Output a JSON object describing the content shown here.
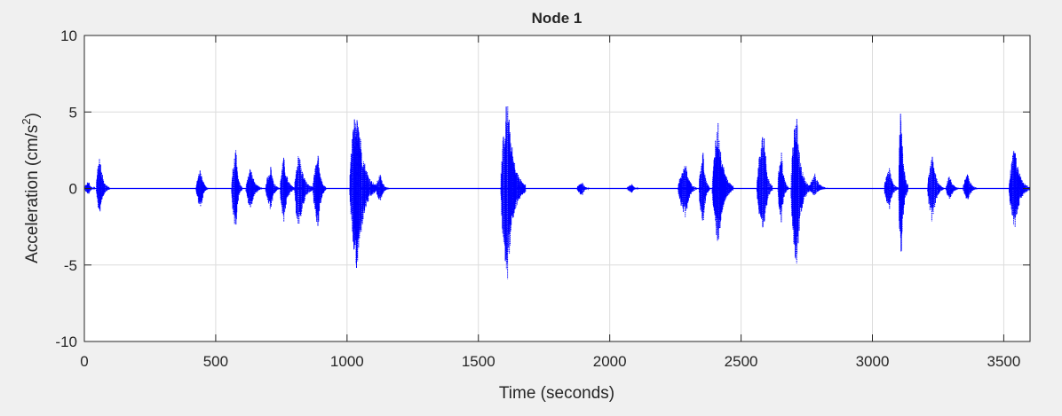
{
  "chart_data": {
    "type": "line",
    "title": "Node 1",
    "xlabel": "Time (seconds)",
    "ylabel_main": "Acceleration (cm/s",
    "ylabel_sup": "2",
    "ylabel_end": ")",
    "xlim": [
      0,
      3600
    ],
    "ylim": [
      -10,
      10
    ],
    "xticks": [
      0,
      500,
      1000,
      1500,
      2000,
      2500,
      3000,
      3500
    ],
    "xtick_labels": [
      "0",
      "500",
      "1000",
      "1500",
      "2000",
      "2500",
      "3000",
      "3500"
    ],
    "yticks": [
      10,
      5,
      0,
      -5,
      -10
    ],
    "ytick_labels": [
      "10",
      "5",
      "0",
      "-5",
      "-10"
    ],
    "grid": true,
    "series": [
      {
        "color": "#0000ff",
        "line_style": "dotted",
        "bursts": [
          {
            "t_start": 0,
            "t_end": 40,
            "peak_max": 0.5,
            "peak_min": -0.4
          },
          {
            "t_start": 45,
            "t_end": 95,
            "peak_max": 2.3,
            "peak_min": -1.8
          },
          {
            "t_start": 425,
            "t_end": 470,
            "peak_max": 1.4,
            "peak_min": -1.5
          },
          {
            "t_start": 560,
            "t_end": 600,
            "peak_max": 2.6,
            "peak_min": -2.9
          },
          {
            "t_start": 615,
            "t_end": 675,
            "peak_max": 1.5,
            "peak_min": -1.5
          },
          {
            "t_start": 690,
            "t_end": 740,
            "peak_max": 1.5,
            "peak_min": -1.6
          },
          {
            "t_start": 745,
            "t_end": 800,
            "peak_max": 2.1,
            "peak_min": -2.3
          },
          {
            "t_start": 800,
            "t_end": 870,
            "peak_max": 2.5,
            "peak_min": -3.0
          },
          {
            "t_start": 870,
            "t_end": 920,
            "peak_max": 2.3,
            "peak_min": -2.7
          },
          {
            "t_start": 1010,
            "t_end": 1110,
            "peak_max": 6.2,
            "peak_min": -5.9
          },
          {
            "t_start": 1110,
            "t_end": 1160,
            "peak_max": 1.0,
            "peak_min": -1.0
          },
          {
            "t_start": 1585,
            "t_end": 1680,
            "peak_max": 6.2,
            "peak_min": -6.1
          },
          {
            "t_start": 1875,
            "t_end": 1920,
            "peak_max": 0.5,
            "peak_min": -0.5
          },
          {
            "t_start": 2065,
            "t_end": 2110,
            "peak_max": 0.3,
            "peak_min": -0.3
          },
          {
            "t_start": 2260,
            "t_end": 2330,
            "peak_max": 1.7,
            "peak_min": -2.0
          },
          {
            "t_start": 2340,
            "t_end": 2380,
            "peak_max": 2.7,
            "peak_min": -2.9
          },
          {
            "t_start": 2390,
            "t_end": 2470,
            "peak_max": 4.6,
            "peak_min": -3.8
          },
          {
            "t_start": 2560,
            "t_end": 2620,
            "peak_max": 4.1,
            "peak_min": -3.2
          },
          {
            "t_start": 2640,
            "t_end": 2680,
            "peak_max": 2.9,
            "peak_min": -2.4
          },
          {
            "t_start": 2690,
            "t_end": 2760,
            "peak_max": 5.2,
            "peak_min": -5.7
          },
          {
            "t_start": 2760,
            "t_end": 2830,
            "peak_max": 1.0,
            "peak_min": -0.5
          },
          {
            "t_start": 3045,
            "t_end": 3100,
            "peak_max": 1.4,
            "peak_min": -1.4
          },
          {
            "t_start": 3100,
            "t_end": 3135,
            "peak_max": 6.2,
            "peak_min": -5.3
          },
          {
            "t_start": 3210,
            "t_end": 3270,
            "peak_max": 2.3,
            "peak_min": -2.4
          },
          {
            "t_start": 3280,
            "t_end": 3330,
            "peak_max": 0.9,
            "peak_min": -0.9
          },
          {
            "t_start": 3345,
            "t_end": 3400,
            "peak_max": 1.0,
            "peak_min": -0.9
          },
          {
            "t_start": 3520,
            "t_end": 3600,
            "peak_max": 2.8,
            "peak_min": -2.8
          }
        ]
      }
    ]
  }
}
